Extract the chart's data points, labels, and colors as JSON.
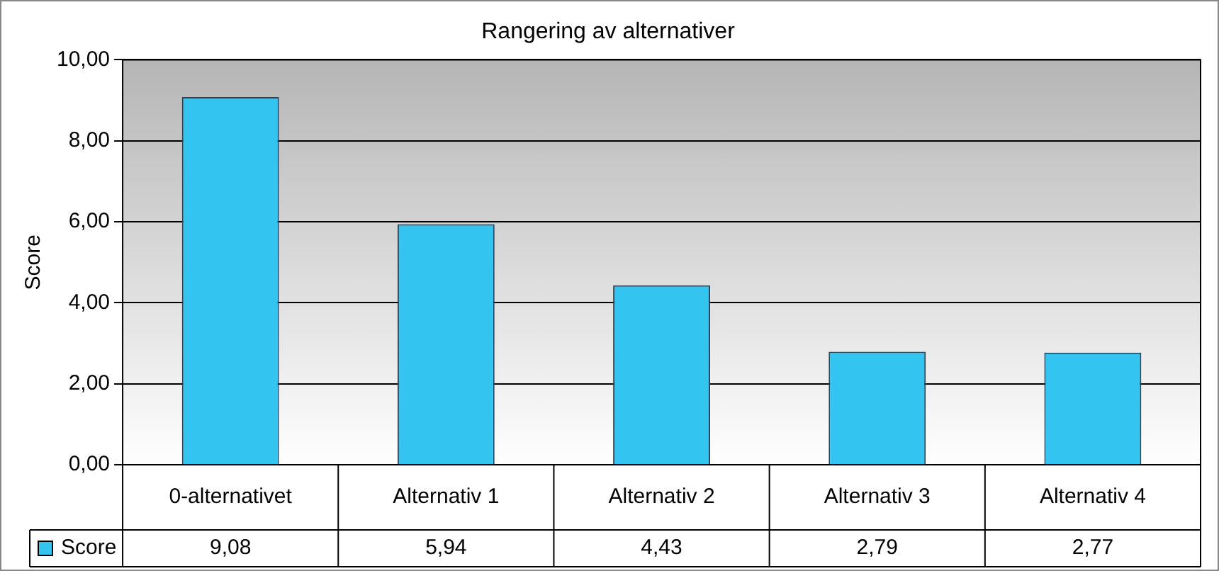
{
  "chart_data": {
    "type": "bar",
    "title": "Rangering av alternativer",
    "ylabel": "Score",
    "categories": [
      "0-alternativet",
      "Alternativ 1",
      "Alternativ 2",
      "Alternativ 3",
      "Alternativ 4"
    ],
    "series": [
      {
        "name": "Score",
        "color": "#33c4ef",
        "values": [
          9.08,
          5.94,
          4.43,
          2.79,
          2.77
        ],
        "value_labels": [
          "9,08",
          "5,94",
          "4,43",
          "2,79",
          "2,77"
        ]
      }
    ],
    "ylim": [
      0,
      10
    ],
    "yticks": [
      {
        "value": 0,
        "label": "0,00"
      },
      {
        "value": 2,
        "label": "2,00"
      },
      {
        "value": 4,
        "label": "4,00"
      },
      {
        "value": 6,
        "label": "6,00"
      },
      {
        "value": 8,
        "label": "8,00"
      },
      {
        "value": 10,
        "label": "10,00"
      }
    ],
    "grid": "y",
    "legend": "bottom left"
  }
}
